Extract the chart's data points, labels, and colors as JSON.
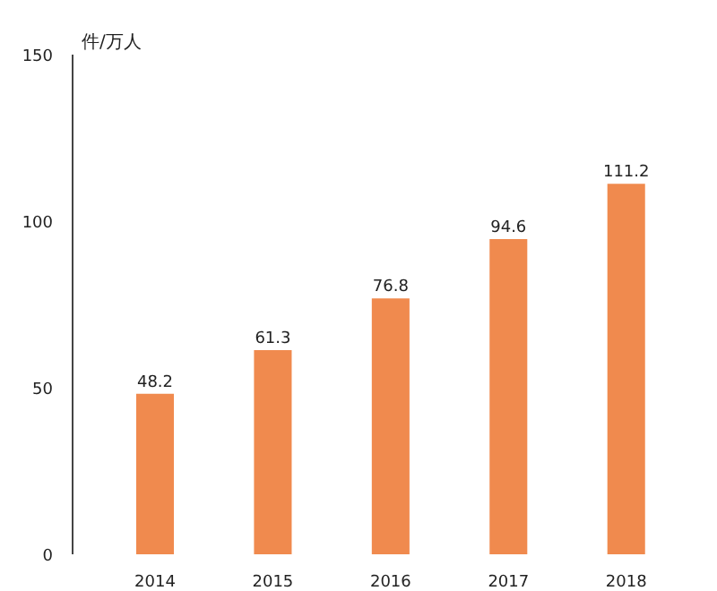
{
  "chart_data": {
    "type": "bar",
    "ylabel": "件/万人",
    "categories": [
      "2014",
      "2015",
      "2016",
      "2017",
      "2018"
    ],
    "values": [
      48.2,
      61.3,
      76.8,
      94.6,
      111.2
    ],
    "color": "#f08a4e",
    "ylim": [
      0,
      150
    ],
    "yticks": [
      0,
      50,
      100,
      150
    ],
    "data_labels": true,
    "grid": false
  }
}
